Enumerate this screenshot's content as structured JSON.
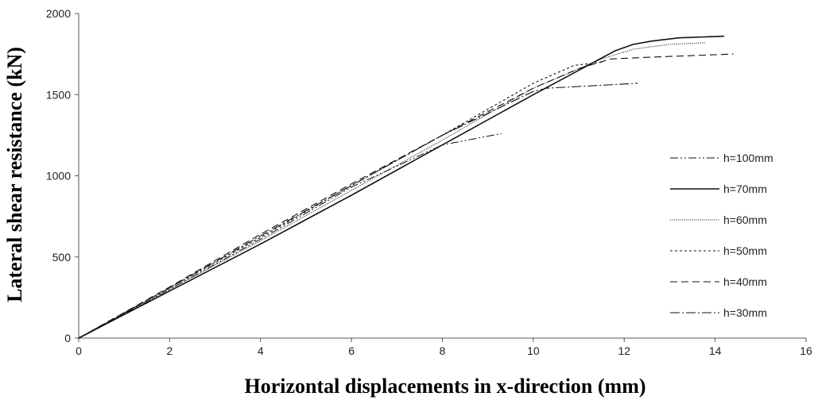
{
  "chart_data": {
    "type": "line",
    "title": "",
    "xlabel": "Horizontal displacements in x-direction (mm)",
    "ylabel": "Lateral shear resistance (kN)",
    "xlim": [
      0,
      16
    ],
    "ylim": [
      0,
      2000
    ],
    "xticks": [
      "0",
      "2",
      "4",
      "6",
      "8",
      "10",
      "12",
      "14",
      "16"
    ],
    "yticks": [
      "0",
      "500",
      "1000",
      "1500",
      "2000"
    ],
    "grid": false,
    "legend_position": "right",
    "series": [
      {
        "name": "h=100mm",
        "dash": "10,3,2,3,2,3",
        "stroke_width": 1,
        "x": [
          0,
          2,
          4,
          6,
          8,
          9.3
        ],
        "y": [
          0,
          300,
          610,
          930,
          1190,
          1260
        ]
      },
      {
        "name": "h=70mm",
        "dash": "",
        "stroke_width": 1.6,
        "x": [
          0,
          2,
          4,
          6,
          8,
          10,
          11,
          11.8,
          12.2,
          12.6,
          13.2,
          14.2
        ],
        "y": [
          0,
          290,
          580,
          880,
          1190,
          1500,
          1650,
          1770,
          1810,
          1830,
          1850,
          1860
        ]
      },
      {
        "name": "h=60mm",
        "dash": "1,1.5",
        "stroke_width": 1.1,
        "x": [
          0,
          2,
          4,
          6,
          8,
          10,
          11.5,
          12.2,
          13,
          13.8
        ],
        "y": [
          0,
          300,
          600,
          910,
          1220,
          1540,
          1720,
          1780,
          1810,
          1820
        ]
      },
      {
        "name": "h=50mm",
        "dash": "3,3",
        "stroke_width": 1.1,
        "x": [
          0,
          2,
          4,
          6,
          8,
          10,
          10.9,
          11.5
        ],
        "y": [
          0,
          310,
          620,
          940,
          1250,
          1570,
          1680,
          1700
        ]
      },
      {
        "name": "h=40mm",
        "dash": "9,5",
        "stroke_width": 1.1,
        "x": [
          0,
          2,
          4,
          6,
          8,
          10,
          11,
          11.7,
          12.5,
          14.4
        ],
        "y": [
          0,
          315,
          640,
          950,
          1250,
          1540,
          1660,
          1720,
          1730,
          1750
        ]
      },
      {
        "name": "h=30mm",
        "dash": "12,3,2,3",
        "stroke_width": 1.1,
        "x": [
          0,
          2,
          4,
          6,
          8,
          10,
          10.3,
          11,
          12.3
        ],
        "y": [
          0,
          310,
          630,
          940,
          1250,
          1520,
          1540,
          1550,
          1570
        ]
      }
    ]
  }
}
